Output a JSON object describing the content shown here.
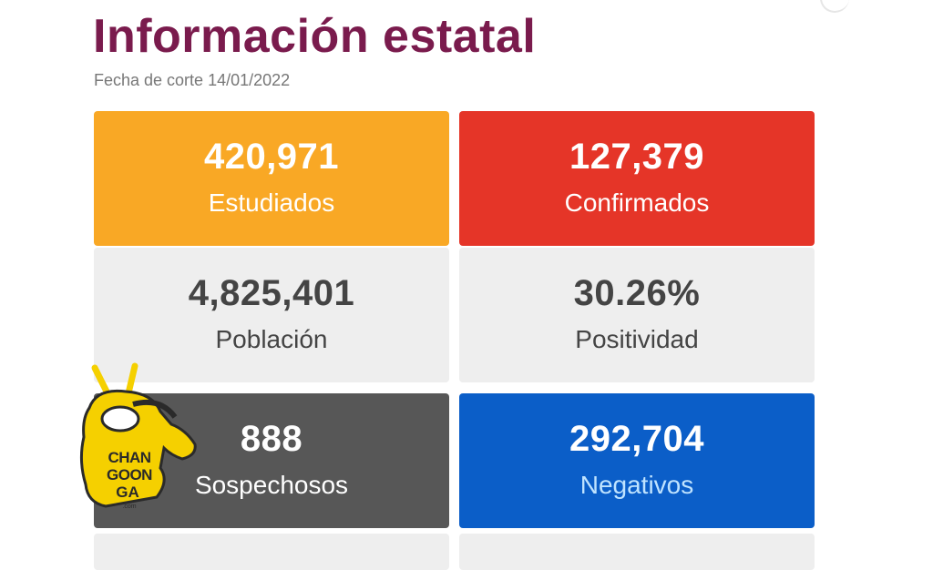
{
  "header": {
    "title": "Información estatal",
    "subtitle": "Fecha de corte 14/01/2022"
  },
  "colors": {
    "title": "#7a1b4d",
    "studied": "#f9a825",
    "confirmed": "#e53528",
    "neutral": "#eeeeee",
    "suspected": "#575757",
    "negatives": "#0b5ec8"
  },
  "cards": [
    {
      "value": "420,971",
      "label": "Estudiados"
    },
    {
      "value": "127,379",
      "label": "Confirmados"
    },
    {
      "value": "4,825,401",
      "label": "Población"
    },
    {
      "value": "30.26%",
      "label": "Positividad"
    },
    {
      "value": "888",
      "label": "Sospechosos"
    },
    {
      "value": "292,704",
      "label": "Negativos"
    }
  ],
  "watermark": {
    "text": "CHANGOONGA",
    "domain": ".com",
    "icon": "monkey-mascot-icon"
  }
}
